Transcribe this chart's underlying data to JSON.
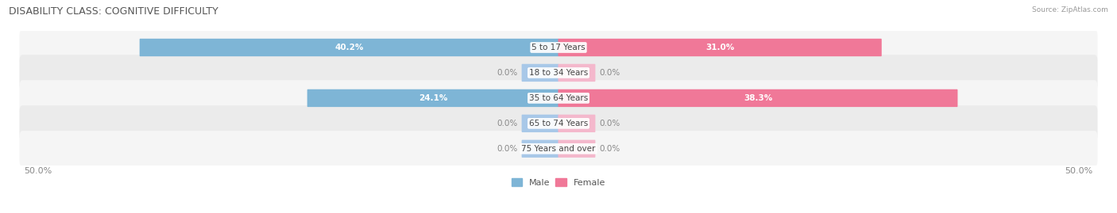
{
  "title": "DISABILITY CLASS: COGNITIVE DIFFICULTY",
  "source": "Source: ZipAtlas.com",
  "categories": [
    "5 to 17 Years",
    "18 to 34 Years",
    "35 to 64 Years",
    "65 to 74 Years",
    "75 Years and over"
  ],
  "male_values": [
    40.2,
    0.0,
    24.1,
    0.0,
    0.0
  ],
  "female_values": [
    31.0,
    0.0,
    38.3,
    0.0,
    0.0
  ],
  "max_val": 50.0,
  "male_color": "#7eb5d6",
  "female_color": "#f07898",
  "male_stub_color": "#a8c8e8",
  "female_stub_color": "#f4b8cc",
  "row_bg_color_light": "#f5f5f5",
  "row_bg_color_dark": "#ebebeb",
  "title_fontsize": 9,
  "label_fontsize": 7.5,
  "axis_label_fontsize": 8,
  "category_fontsize": 7.5,
  "legend_fontsize": 8
}
